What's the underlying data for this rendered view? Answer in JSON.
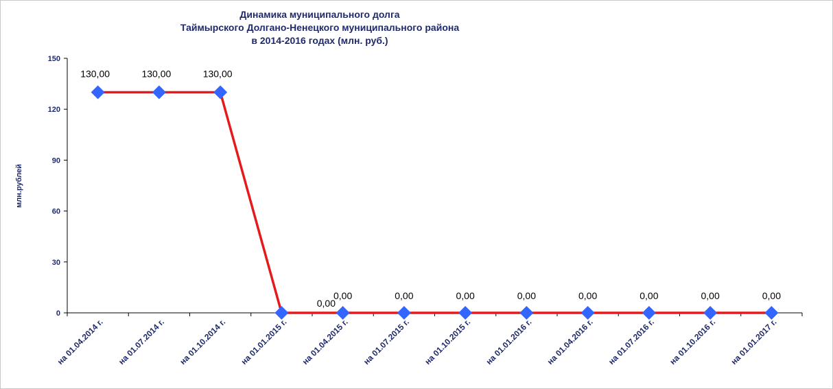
{
  "chart_data": {
    "type": "line",
    "title": [
      "Динамика муниципального долга",
      "Таймырского Долгано-Ненецкого муниципального района",
      "в 2014-2016 годах (млн. руб.)"
    ],
    "ylabel": "млн.рублей",
    "xlabel": "",
    "ylim": [
      0,
      150
    ],
    "yticks": [
      0,
      30,
      60,
      90,
      120,
      150
    ],
    "categories": [
      "на 01.04.2014 г.",
      "на 01.07.2014 г.",
      "на 01.10.2014 г.",
      "на 01.01.2015 г.",
      "на 01.04.2015 г.",
      "на 01.07.2015 г.",
      "на 01.10.2015 г.",
      "на 01.01.2016 г.",
      "на 01.04.2016 г.",
      "на 01.07.2016 г.",
      "на 01.10.2016 г.",
      "на 01.01.2017 г."
    ],
    "series": [
      {
        "values": [
          130,
          130,
          130,
          0,
          0,
          0,
          0,
          0,
          0,
          0,
          0,
          0
        ],
        "labels": [
          "130,00",
          "130,00",
          "130,00",
          "",
          "0,00",
          "0,00",
          "0,00",
          "0,00",
          "0,00",
          "0,00",
          "0,00",
          "0,00"
        ],
        "color": "#e41a1c",
        "marker_color": "#3366ff"
      }
    ],
    "extra_labels": [
      "0,00"
    ],
    "grid": false
  }
}
